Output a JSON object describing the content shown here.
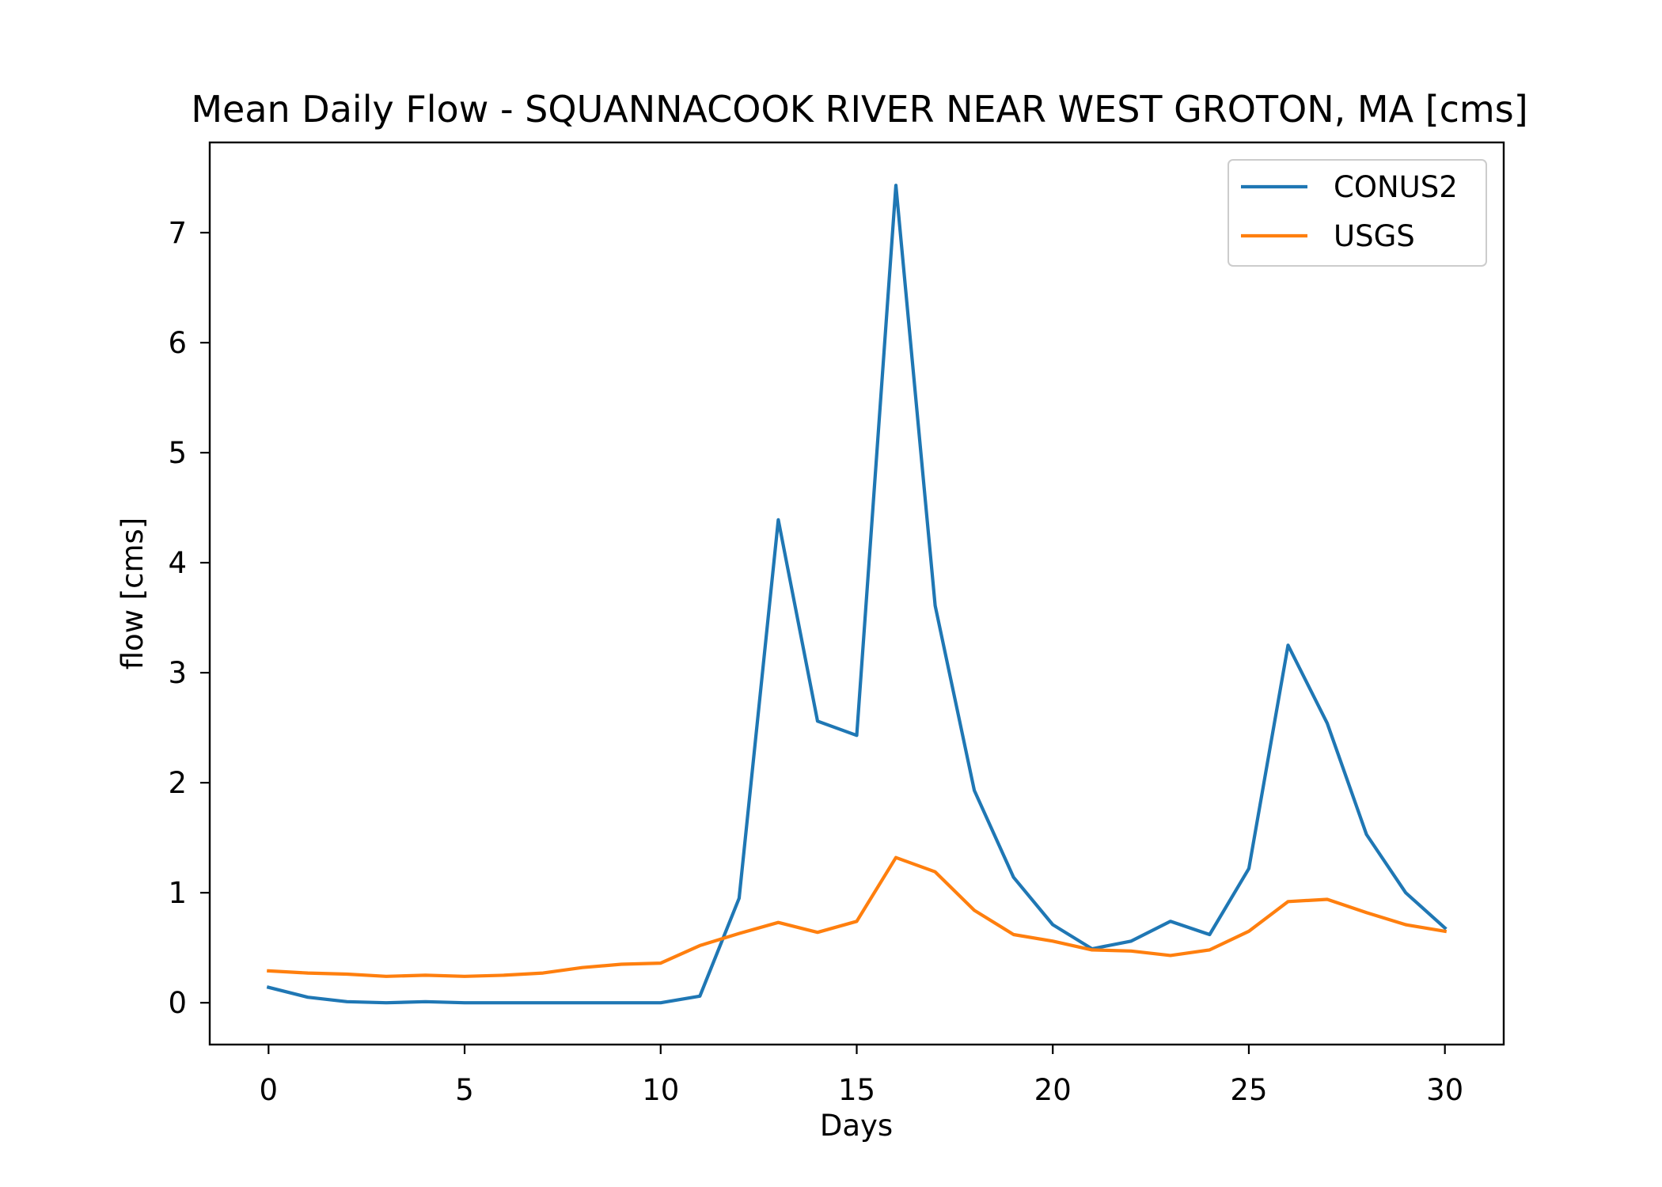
{
  "chart_data": {
    "type": "line",
    "title": "Mean Daily Flow - SQUANNACOOK RIVER NEAR WEST GROTON, MA [cms]",
    "xlabel": "Days",
    "ylabel": "flow [cms]",
    "xlim": [
      -1.5,
      31.5
    ],
    "ylim": [
      -0.38,
      7.82
    ],
    "xticks": [
      0,
      5,
      10,
      15,
      20,
      25,
      30
    ],
    "yticks": [
      0,
      1,
      2,
      3,
      4,
      5,
      6,
      7
    ],
    "grid": false,
    "legend_position": "top-right",
    "x": [
      0,
      1,
      2,
      3,
      4,
      5,
      6,
      7,
      8,
      9,
      10,
      11,
      12,
      13,
      14,
      15,
      16,
      17,
      18,
      19,
      20,
      21,
      22,
      23,
      24,
      25,
      26,
      27,
      28,
      29,
      30
    ],
    "series": [
      {
        "name": "CONUS2",
        "color": "#1f77b4",
        "values": [
          0.14,
          0.05,
          0.01,
          0.0,
          0.01,
          0.0,
          0.0,
          0.0,
          0.0,
          0.0,
          0.0,
          0.06,
          0.95,
          4.39,
          2.56,
          2.43,
          7.43,
          3.61,
          1.93,
          1.14,
          0.71,
          0.49,
          0.56,
          0.74,
          0.62,
          1.22,
          3.25,
          2.54,
          1.53,
          1.0,
          0.68
        ]
      },
      {
        "name": "USGS",
        "color": "#ff7f0e",
        "values": [
          0.29,
          0.27,
          0.26,
          0.24,
          0.25,
          0.24,
          0.25,
          0.27,
          0.32,
          0.35,
          0.36,
          0.52,
          0.63,
          0.73,
          0.64,
          0.74,
          1.32,
          1.19,
          0.84,
          0.62,
          0.56,
          0.48,
          0.47,
          0.43,
          0.48,
          0.65,
          0.92,
          0.94,
          0.82,
          0.71,
          0.65
        ]
      }
    ]
  }
}
